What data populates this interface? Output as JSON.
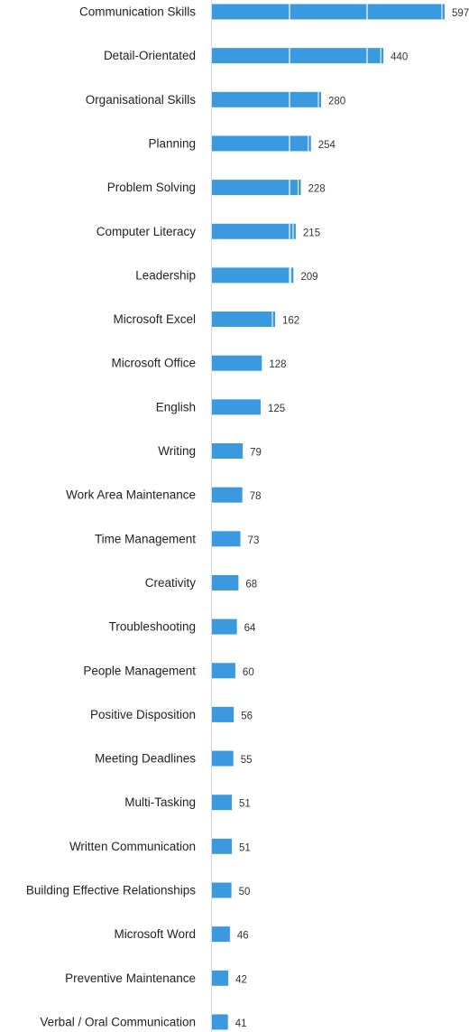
{
  "chart_data": {
    "type": "bar",
    "orientation": "horizontal",
    "title": "",
    "xlabel": "",
    "ylabel": "",
    "grid": false,
    "legend": "none",
    "categories": [
      "Communication Skills",
      "Detail-Orientated",
      "Organisational Skills",
      "Planning",
      "Problem Solving",
      "Computer Literacy",
      "Leadership",
      "Microsoft Excel",
      "Microsoft Office",
      "English",
      "Writing",
      "Work Area Maintenance",
      "Time Management",
      "Creativity",
      "Troubleshooting",
      "People Management",
      "Positive Disposition",
      "Meeting Deadlines",
      "Multi-Tasking",
      "Written Communication",
      "Building Effective Relationships",
      "Microsoft Word",
      "Preventive Maintenance",
      "Verbal / Oral Communication"
    ],
    "values": [
      597,
      440,
      280,
      254,
      228,
      215,
      209,
      162,
      128,
      125,
      79,
      78,
      73,
      68,
      64,
      60,
      56,
      55,
      51,
      51,
      50,
      46,
      42,
      41
    ],
    "value_labels": [
      "597",
      "440",
      "280",
      "254",
      "228",
      "215",
      "209",
      "162",
      "128",
      "125",
      "79",
      "78",
      "73",
      "68",
      "64",
      "60",
      "56",
      "55",
      "51",
      "51",
      "50",
      "46",
      "42",
      "41"
    ],
    "xlim": [
      0,
      597
    ]
  },
  "colors": {
    "bar": "#3b99e0",
    "segment_divider": "#ffffff",
    "axis_line": "#cfd8dc",
    "category_text": "#222222",
    "value_text": "#333333"
  }
}
